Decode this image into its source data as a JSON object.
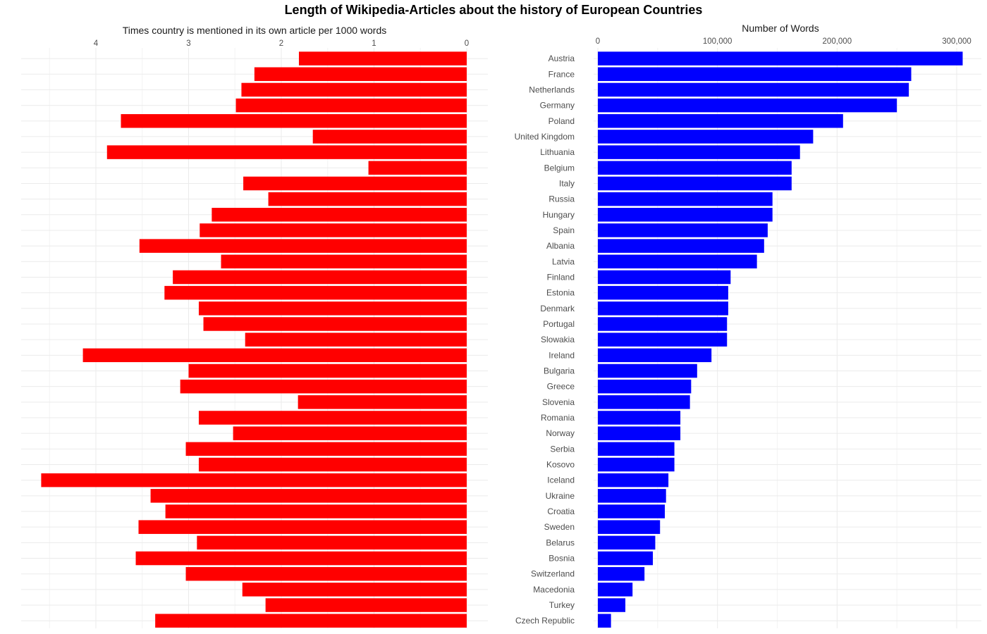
{
  "chart_data": {
    "title": "Length of Wikipedia-Articles about the history of European Countries",
    "categories": [
      "Austria",
      "France",
      "Netherlands",
      "Germany",
      "Poland",
      "United Kingdom",
      "Lithuania",
      "Belgium",
      "Italy",
      "Russia",
      "Hungary",
      "Spain",
      "Albania",
      "Latvia",
      "Finland",
      "Estonia",
      "Denmark",
      "Portugal",
      "Slowakia",
      "Ireland",
      "Bulgaria",
      "Greece",
      "Slovenia",
      "Romania",
      "Norway",
      "Serbia",
      "Kosovo",
      "Iceland",
      "Ukraine",
      "Croatia",
      "Sweden",
      "Belarus",
      "Bosnia",
      "Switzerland",
      "Macedonia",
      "Turkey",
      "Czech Republic"
    ],
    "panels": [
      {
        "type": "bar",
        "orientation": "horizontal",
        "xlabel": "Times country is mentioned in its own article per 1000 words",
        "x_reversed": true,
        "xlim": [
          0,
          4.8
        ],
        "ticks": [
          0,
          1,
          2,
          3,
          4
        ],
        "tick_labels": [
          "0",
          "1",
          "2",
          "3",
          "4"
        ],
        "bar_color": "#FF0000",
        "values": [
          1.81,
          2.29,
          2.43,
          2.49,
          3.73,
          1.66,
          3.88,
          1.06,
          2.41,
          2.14,
          2.75,
          2.88,
          3.53,
          2.65,
          3.17,
          3.26,
          2.89,
          2.84,
          2.39,
          4.14,
          3.0,
          3.09,
          1.82,
          2.89,
          2.52,
          3.03,
          2.89,
          4.59,
          3.41,
          3.25,
          3.54,
          2.91,
          3.57,
          3.03,
          2.42,
          2.17,
          3.36
        ]
      },
      {
        "type": "bar",
        "orientation": "horizontal",
        "xlabel": "Number of Words",
        "xlim": [
          0,
          315000
        ],
        "ticks": [
          0,
          100000,
          200000,
          300000
        ],
        "tick_labels": [
          "0",
          "100,000",
          "200,000",
          "300,000"
        ],
        "bar_color": "#0000FF",
        "values": [
          305000,
          262000,
          260000,
          250000,
          205000,
          180000,
          169000,
          162000,
          162000,
          146000,
          146000,
          142000,
          139000,
          133000,
          111000,
          109000,
          109000,
          108000,
          108000,
          95000,
          83000,
          78000,
          77000,
          69000,
          69000,
          64000,
          64000,
          59000,
          57000,
          56000,
          52000,
          48000,
          46000,
          39000,
          29000,
          23000,
          11000
        ]
      }
    ]
  }
}
